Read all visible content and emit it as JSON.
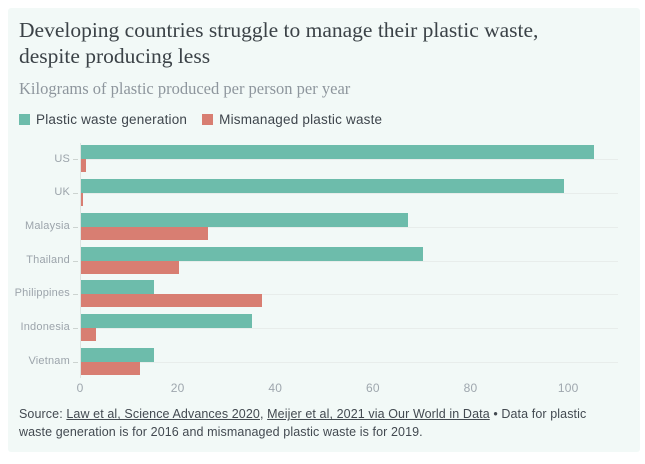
{
  "header": {
    "title": "Developing countries struggle to manage their plastic waste, despite producing less",
    "subtitle": "Kilograms of plastic produced per person per year"
  },
  "legend": [
    {
      "label": "Plastic waste generation",
      "color": "#6dbcab"
    },
    {
      "label": "Mismanaged plastic waste",
      "color": "#d87e72"
    }
  ],
  "colors": {
    "card_background": "#f2f9f7",
    "page_background": "#ffffff",
    "generation_bar": "#6dbcab",
    "mismanaged_bar": "#d87e72",
    "gridline": "#e8edeb",
    "axis_line": "#dde3e1",
    "label_text": "#9ca4ab",
    "title_text": "#3b4247",
    "subtitle_text": "#8e969d"
  },
  "chart_data": {
    "type": "bar",
    "orientation": "horizontal",
    "title": "Developing countries struggle to manage their plastic waste, despite producing less",
    "subtitle": "Kilograms of plastic produced per person per year",
    "categories": [
      "US",
      "UK",
      "Malaysia",
      "Thailand",
      "Philippines",
      "Indonesia",
      "Vietnam"
    ],
    "series": [
      {
        "name": "Plastic waste generation",
        "color": "#6dbcab",
        "values": [
          105,
          99,
          67,
          70,
          15,
          35,
          15
        ]
      },
      {
        "name": "Mismanaged plastic waste",
        "color": "#d87e72",
        "values": [
          1,
          0.5,
          26,
          20,
          37,
          3,
          12
        ]
      }
    ],
    "x_ticks": [
      0,
      20,
      40,
      60,
      80,
      100
    ],
    "xlim": [
      0,
      110
    ],
    "xlabel": "",
    "ylabel": "",
    "grid": true,
    "legend_position": "top-left"
  },
  "footer": {
    "source_label": "Source: ",
    "links": [
      {
        "text": "Law et al, Science Advances 2020"
      },
      {
        "text": "Meijer et al, 2021 via Our World in Data"
      }
    ],
    "separator": ", ",
    "note": " • Data for plastic waste generation is for 2016 and mismanaged plastic waste is for 2019."
  }
}
